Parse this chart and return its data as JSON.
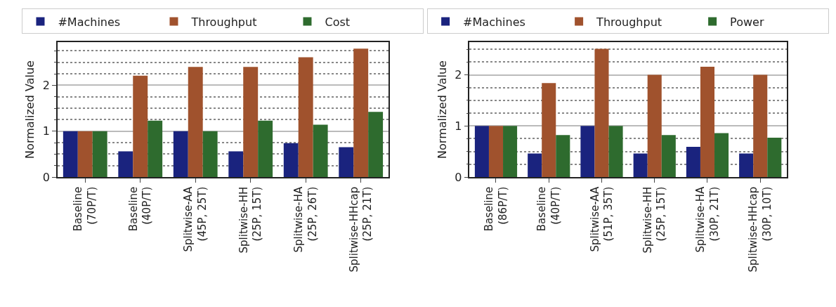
{
  "chart_data": [
    {
      "type": "bar",
      "ylabel": "Normalized Value",
      "categories": [
        "Baseline\n(70P/T)",
        "Baseline\n(40P/T)",
        "Splitwise-AA\n(45P, 25T)",
        "Splitwise-HH\n(25P, 15T)",
        "Splitwise-HA\n(25P, 26T)",
        "Splitwise-HHcap\n(25P, 21T)"
      ],
      "series": [
        {
          "name": "#Machines",
          "color": "#1a237e",
          "values": [
            1,
            0.56,
            1,
            0.56,
            0.74,
            0.65
          ]
        },
        {
          "name": "Throughput",
          "color": "#a0522d",
          "values": [
            1,
            2.21,
            2.4,
            2.4,
            2.61,
            2.8
          ]
        },
        {
          "name": "Cost",
          "color": "#2e6b2e",
          "values": [
            1,
            1.23,
            1,
            1.23,
            1.14,
            1.42
          ]
        }
      ],
      "ylim": [
        0,
        2.94
      ],
      "yticks": [
        0,
        {
          "value": 0.25,
          "label": null
        },
        {
          "value": 0.5,
          "label": null
        },
        {
          "value": 0.75,
          "label": null
        },
        1,
        {
          "value": 1.25,
          "label": null
        },
        {
          "value": 1.5,
          "label": null
        },
        {
          "value": 1.75,
          "label": null
        },
        2,
        {
          "value": 2.25,
          "label": null
        },
        {
          "value": 2.5,
          "label": null
        },
        {
          "value": 2.75,
          "label": null
        }
      ],
      "grid": "y",
      "legend": "top"
    },
    {
      "type": "bar",
      "ylabel": "Normalized Value",
      "categories": [
        "Baseline\n(86P/T)",
        "Baseline\n(40P/T)",
        "Splitwise-AA\n(51P, 35T)",
        "Splitwise-HH\n(25P, 15T)",
        "Splitwise-HA\n(30P, 21T)",
        "Splitwise-HHcap\n(30P, 10T)"
      ],
      "series": [
        {
          "name": "#Machines",
          "color": "#1a237e",
          "values": [
            1,
            0.46,
            1,
            0.46,
            0.59,
            0.46
          ]
        },
        {
          "name": "Throughput",
          "color": "#a0522d",
          "values": [
            1,
            1.84,
            2.51,
            2.0,
            2.16,
            2.0
          ]
        },
        {
          "name": "Power",
          "color": "#2e6b2e",
          "values": [
            1,
            0.82,
            1,
            0.82,
            0.86,
            0.77
          ]
        }
      ],
      "ylim": [
        0,
        2.64
      ],
      "yticks": [
        0,
        {
          "value": 0.25,
          "label": null
        },
        {
          "value": 0.5,
          "label": null
        },
        {
          "value": 0.75,
          "label": null
        },
        1,
        {
          "value": 1.25,
          "label": null
        },
        {
          "value": 1.5,
          "label": null
        },
        {
          "value": 1.75,
          "label": null
        },
        2,
        {
          "value": 2.25,
          "label": null
        },
        {
          "value": 2.5,
          "label": null
        }
      ],
      "grid": "y",
      "legend": "top"
    }
  ]
}
